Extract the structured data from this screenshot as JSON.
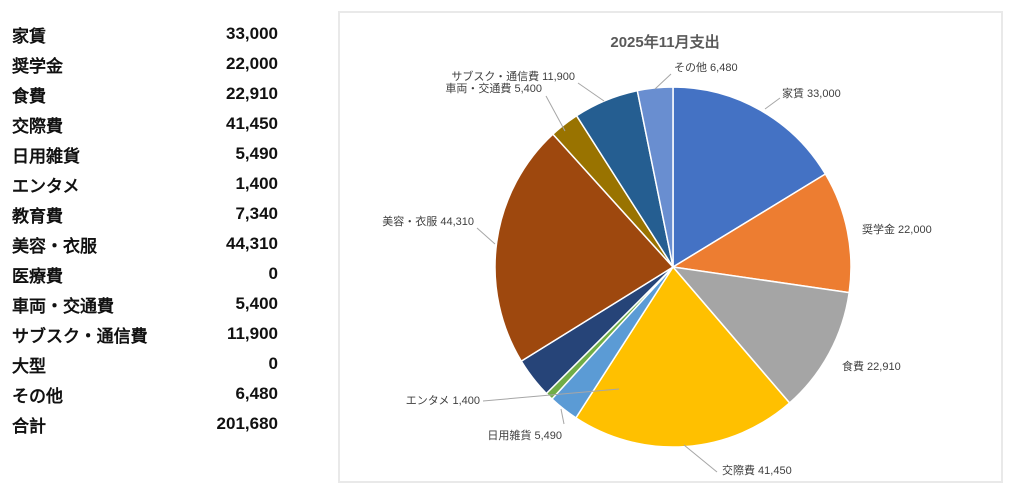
{
  "table": {
    "rows": [
      {
        "label": "家賃",
        "value": "33,000"
      },
      {
        "label": "奨学金",
        "value": "22,000"
      },
      {
        "label": "食費",
        "value": "22,910"
      },
      {
        "label": "交際費",
        "value": "41,450"
      },
      {
        "label": "日用雑貨",
        "value": "5,490"
      },
      {
        "label": "エンタメ",
        "value": "1,400"
      },
      {
        "label": "教育費",
        "value": "7,340"
      },
      {
        "label": "美容・衣服",
        "value": "44,310"
      },
      {
        "label": "医療費",
        "value": "0"
      },
      {
        "label": "車両・交通費",
        "value": "5,400"
      },
      {
        "label": "サブスク・通信費",
        "value": "11,900"
      },
      {
        "label": "大型",
        "value": "0"
      },
      {
        "label": "その他",
        "value": "6,480"
      },
      {
        "label": "合計",
        "value": "201,680"
      }
    ]
  },
  "chart_data": {
    "type": "pie",
    "title": "2025年11月支出",
    "total": 201680,
    "legend": "none",
    "label_style": "outside-with-leader-lines",
    "start_angle_deg": 0,
    "direction": "clockwise",
    "points": [
      {
        "name": "家賃",
        "value": 33000,
        "color": "#4472C4",
        "label": "家賃 33,000"
      },
      {
        "name": "奨学金",
        "value": 22000,
        "color": "#ED7D31",
        "label": "奨学金 22,000"
      },
      {
        "name": "食費",
        "value": 22910,
        "color": "#A5A5A5",
        "label": "食費 22,910"
      },
      {
        "name": "交際費",
        "value": 41450,
        "color": "#FFC000",
        "label": "交際費 41,450"
      },
      {
        "name": "日用雑貨",
        "value": 5490,
        "color": "#5B9BD5",
        "label": "日用雑貨 5,490"
      },
      {
        "name": "エンタメ",
        "value": 1400,
        "color": "#70AD47",
        "label": "エンタメ 1,400"
      },
      {
        "name": "教育費",
        "value": 7340,
        "color": "#264478",
        "label": null
      },
      {
        "name": "美容・衣服",
        "value": 44310,
        "color": "#9E480E",
        "label": "美容・衣服 44,310"
      },
      {
        "name": "医療費",
        "value": 0,
        "color": "#636363",
        "label": null
      },
      {
        "name": "車両・交通費",
        "value": 5400,
        "color": "#997300",
        "label": "車両・交通費 5,400"
      },
      {
        "name": "サブスク・通信費",
        "value": 11900,
        "color": "#255E91",
        "label": "サブスク・通信費 11,900"
      },
      {
        "name": "大型",
        "value": 0,
        "color": "#43682B",
        "label": null
      },
      {
        "name": "その他",
        "value": 6480,
        "color": "#698ED0",
        "label": "その他 6,480"
      }
    ]
  }
}
